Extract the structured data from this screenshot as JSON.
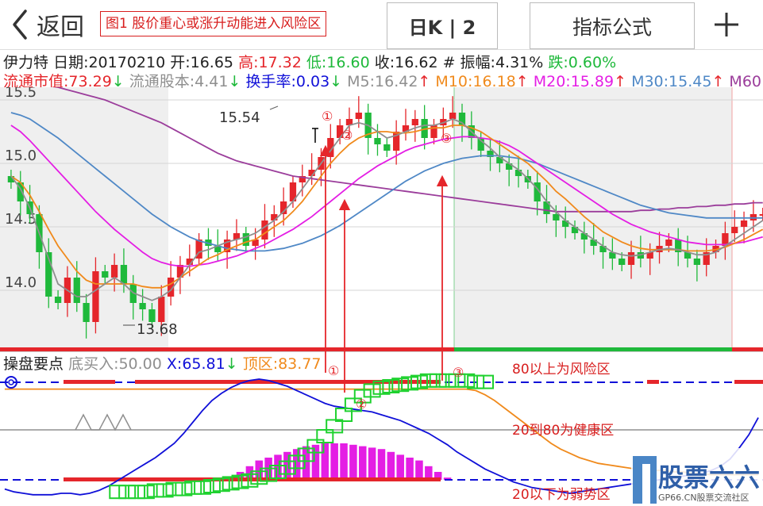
{
  "nav": {
    "back_label": "返回",
    "annotation": "图1 股价重心或涨升动能进入风险区",
    "period_button": "日K | 2",
    "formula_button": "指标公式"
  },
  "info_line1": {
    "name": "伊力特",
    "date": "日期:20170210",
    "open": "开:16.65",
    "high": "高:17.32",
    "low": "低:16.60",
    "close": "收:16.62",
    "amp": "# 振幅:4.31%",
    "change": "跌:0.60%"
  },
  "info_line2": {
    "mktcap": "流通市值:73.29",
    "shares": "流通股本:4.41",
    "turnover": "换手率:0.03",
    "ma5": "M5:16.42",
    "ma10": "M10:16.18",
    "ma20": "M20:15.89",
    "ma30": "M30:15.45",
    "ma60": "M60"
  },
  "price_axis": [
    "15.5",
    "15.0",
    "14.5",
    "14.0"
  ],
  "chart_labels": {
    "max": "15.54",
    "min": "13.68"
  },
  "markers": [
    "①",
    "②",
    "③"
  ],
  "indicator": {
    "title": "操盘要点",
    "buy": "底买入:50.00",
    "x": "X:65.81",
    "top": "顶区:83.77",
    "zone_high": "80以上为风险区",
    "zone_mid": "20到80为健康区",
    "zone_low": "20以下为弱势区"
  },
  "watermark": {
    "main": "股票六六",
    "sub": "GP66.CN股票交流社区"
  },
  "colors": {
    "up": "#e5262b",
    "down": "#1fb93b",
    "ma5": "#8f8f8f",
    "ma10": "#f08a1c",
    "ma20": "#e41ee4",
    "ma30": "#4f88c6",
    "ma60": "#9b3d9b",
    "blue": "#1010d8"
  },
  "chart_data": {
    "type": "candlestick",
    "ylim": [
      13.55,
      15.6
    ],
    "close": [
      14.85,
      14.7,
      14.6,
      14.3,
      13.95,
      13.9,
      14.1,
      13.9,
      13.75,
      14.15,
      14.1,
      14.2,
      14.05,
      13.9,
      13.85,
      13.75,
      13.95,
      14.1,
      14.2,
      14.25,
      14.4,
      14.35,
      14.3,
      14.4,
      14.45,
      14.35,
      14.4,
      14.55,
      14.6,
      14.7,
      14.85,
      14.9,
      14.95,
      15.05,
      15.2,
      15.3,
      15.35,
      15.4,
      15.2,
      15.15,
      15.1,
      15.25,
      15.3,
      15.35,
      15.2,
      15.3,
      15.35,
      15.4,
      15.3,
      15.2,
      15.1,
      15.05,
      15.0,
      14.95,
      14.9,
      14.85,
      14.7,
      14.6,
      14.55,
      14.5,
      14.45,
      14.4,
      14.35,
      14.3,
      14.25,
      14.2,
      14.3,
      14.25,
      14.3,
      14.35,
      14.4,
      14.3,
      14.25,
      14.2,
      14.3,
      14.35,
      14.45,
      14.5,
      14.55,
      14.6,
      14.6
    ],
    "ma5": [
      14.9,
      14.8,
      14.65,
      14.45,
      14.25,
      14.05,
      14.0,
      13.95,
      13.95,
      14.0,
      14.05,
      14.1,
      14.05,
      13.98,
      13.95,
      13.92,
      13.95,
      14.0,
      14.1,
      14.2,
      14.3,
      14.32,
      14.35,
      14.38,
      14.4,
      14.42,
      14.45,
      14.5,
      14.55,
      14.62,
      14.7,
      14.8,
      14.9,
      15.0,
      15.1,
      15.2,
      15.3,
      15.32,
      15.3,
      15.25,
      15.2,
      15.22,
      15.25,
      15.28,
      15.3,
      15.3,
      15.32,
      15.35,
      15.32,
      15.25,
      15.18,
      15.12,
      15.05,
      15.0,
      14.95,
      14.88,
      14.8,
      14.7,
      14.62,
      14.55,
      14.5,
      14.45,
      14.4,
      14.35,
      14.3,
      14.28,
      14.27,
      14.28,
      14.3,
      14.32,
      14.33,
      14.32,
      14.3,
      14.28,
      14.28,
      14.3,
      14.35,
      14.4,
      14.45,
      14.5,
      14.55
    ],
    "ma10": [
      14.9,
      14.85,
      14.75,
      14.62,
      14.48,
      14.35,
      14.25,
      14.15,
      14.08,
      14.05,
      14.05,
      14.05,
      14.05,
      14.05,
      14.03,
      14.02,
      14.02,
      14.05,
      14.1,
      14.15,
      14.2,
      14.25,
      14.28,
      14.32,
      14.35,
      14.38,
      14.4,
      14.45,
      14.5,
      14.55,
      14.62,
      14.7,
      14.8,
      14.9,
      15.0,
      15.08,
      15.15,
      15.2,
      15.23,
      15.25,
      15.25,
      15.24,
      15.24,
      15.25,
      15.27,
      15.28,
      15.28,
      15.3,
      15.3,
      15.28,
      15.25,
      15.2,
      15.15,
      15.1,
      15.05,
      15.0,
      14.93,
      14.86,
      14.78,
      14.72,
      14.65,
      14.58,
      14.52,
      14.46,
      14.42,
      14.38,
      14.35,
      14.33,
      14.32,
      14.32,
      14.32,
      14.32,
      14.31,
      14.31,
      14.31,
      14.32,
      14.34,
      14.37,
      14.4,
      14.44,
      14.48
    ],
    "ma20": [
      15.3,
      15.25,
      15.18,
      15.1,
      15.02,
      14.94,
      14.86,
      14.78,
      14.7,
      14.62,
      14.55,
      14.48,
      14.42,
      14.36,
      14.3,
      14.25,
      14.22,
      14.2,
      14.19,
      14.19,
      14.2,
      14.21,
      14.23,
      14.25,
      14.27,
      14.3,
      14.33,
      14.36,
      14.4,
      14.44,
      14.48,
      14.53,
      14.58,
      14.64,
      14.7,
      14.76,
      14.82,
      14.88,
      14.93,
      14.98,
      15.02,
      15.06,
      15.1,
      15.13,
      15.15,
      15.17,
      15.19,
      15.2,
      15.21,
      15.21,
      15.2,
      15.19,
      15.17,
      15.14,
      15.1,
      15.05,
      15.0,
      14.95,
      14.9,
      14.85,
      14.8,
      14.75,
      14.7,
      14.65,
      14.6,
      14.56,
      14.52,
      14.49,
      14.46,
      14.44,
      14.42,
      14.4,
      14.38,
      14.37,
      14.36,
      14.36,
      14.36,
      14.37,
      14.38,
      14.4,
      14.42
    ],
    "ma30": [
      15.4,
      15.38,
      15.35,
      15.3,
      15.25,
      15.2,
      15.14,
      15.08,
      15.02,
      14.96,
      14.9,
      14.84,
      14.78,
      14.72,
      14.66,
      14.6,
      14.55,
      14.5,
      14.46,
      14.42,
      14.39,
      14.37,
      14.35,
      14.33,
      14.32,
      14.31,
      14.31,
      14.31,
      14.32,
      14.33,
      14.35,
      14.37,
      14.4,
      14.43,
      14.47,
      14.51,
      14.56,
      14.61,
      14.66,
      14.71,
      14.76,
      14.81,
      14.86,
      14.9,
      14.94,
      14.97,
      15.0,
      15.02,
      15.04,
      15.05,
      15.06,
      15.06,
      15.06,
      15.05,
      15.04,
      15.02,
      15.0,
      14.97,
      14.94,
      14.91,
      14.88,
      14.85,
      14.82,
      14.79,
      14.76,
      14.73,
      14.7,
      14.67,
      14.65,
      14.63,
      14.61,
      14.6,
      14.59,
      14.58,
      14.57,
      14.57,
      14.57,
      14.57,
      14.57,
      14.57,
      14.57
    ],
    "ma60": [
      15.65,
      15.64,
      15.63,
      15.62,
      15.61,
      15.6,
      15.58,
      15.56,
      15.54,
      15.52,
      15.5,
      15.47,
      15.44,
      15.41,
      15.38,
      15.35,
      15.32,
      15.28,
      15.24,
      15.2,
      15.16,
      15.12,
      15.08,
      15.05,
      15.02,
      15.0,
      14.98,
      14.96,
      14.94,
      14.92,
      14.9,
      14.89,
      14.88,
      14.87,
      14.86,
      14.85,
      14.84,
      14.83,
      14.82,
      14.81,
      14.8,
      14.79,
      14.78,
      14.77,
      14.76,
      14.75,
      14.74,
      14.73,
      14.72,
      14.71,
      14.7,
      14.69,
      14.68,
      14.67,
      14.66,
      14.65,
      14.64,
      14.63,
      14.62,
      14.62,
      14.62,
      14.62,
      14.62,
      14.62,
      14.62,
      14.62,
      14.62,
      14.63,
      14.63,
      14.64,
      14.64,
      14.65,
      14.65,
      14.66,
      14.66,
      14.67,
      14.67,
      14.68,
      14.68,
      14.69,
      14.69
    ],
    "indicator_ylim": [
      0,
      100
    ],
    "indicator_blue": [
      8,
      6,
      5,
      4,
      4,
      4,
      5,
      5,
      4,
      5,
      7,
      10,
      14,
      18,
      22,
      26,
      30,
      35,
      40,
      47,
      55,
      63,
      70,
      75,
      79,
      82,
      84,
      85,
      84,
      82,
      80,
      77,
      74,
      71,
      68,
      66,
      65,
      64,
      63,
      62,
      60,
      58,
      56,
      53,
      50,
      47,
      43,
      39,
      34,
      30,
      26,
      22,
      19,
      16,
      13,
      11,
      9,
      8,
      7,
      6,
      5,
      6,
      7,
      8,
      9,
      10,
      11,
      12,
      13,
      14,
      15,
      16,
      17,
      18,
      19,
      21,
      24,
      29,
      37,
      46,
      58
    ],
    "indicator_orange": [
      78,
      78,
      78,
      78,
      78,
      78,
      78,
      78,
      78,
      78,
      78,
      78,
      78,
      78,
      78,
      78,
      78,
      78,
      78,
      78,
      78,
      78,
      78,
      78,
      78,
      78,
      78,
      78,
      78,
      78,
      78,
      78,
      78,
      78,
      78,
      78,
      78,
      78,
      78,
      78,
      78,
      78,
      78,
      78,
      78,
      78,
      78,
      78,
      78,
      78,
      77,
      74,
      70,
      65,
      60,
      55,
      50,
      45,
      40,
      36,
      33,
      30,
      28,
      26,
      25,
      24,
      23,
      22,
      22,
      21,
      21,
      20,
      20,
      19,
      19,
      18,
      18,
      18,
      18,
      18,
      18
    ],
    "indicator_green": [
      6,
      6,
      6,
      6,
      7,
      7,
      8,
      8,
      9,
      9,
      10,
      11,
      12,
      13,
      14,
      16,
      18,
      20,
      23,
      27,
      32,
      38,
      45,
      52,
      60,
      67,
      73,
      77,
      79,
      80,
      81,
      82,
      83,
      84,
      84,
      84,
      84,
      84,
      83,
      83
    ],
    "indicator_bars": [
      0,
      0,
      0,
      0,
      0,
      0,
      0,
      0,
      0,
      0,
      0,
      0,
      0,
      0,
      0,
      0,
      0,
      0,
      0,
      0,
      0,
      0,
      5,
      10,
      15,
      20,
      24,
      28,
      30,
      32,
      34,
      36,
      38,
      39,
      40,
      40,
      40,
      39,
      38,
      37,
      36,
      34,
      32,
      30,
      28,
      24,
      20,
      16,
      12,
      8,
      5,
      3,
      0,
      0,
      0,
      0,
      0,
      0,
      0,
      0,
      0,
      0,
      0,
      0,
      0,
      0,
      0,
      0,
      0,
      0,
      0,
      0,
      0,
      0,
      0,
      0,
      0,
      0,
      5,
      10,
      14
    ],
    "max_label_value": 15.54,
    "min_label_value": 13.68
  }
}
